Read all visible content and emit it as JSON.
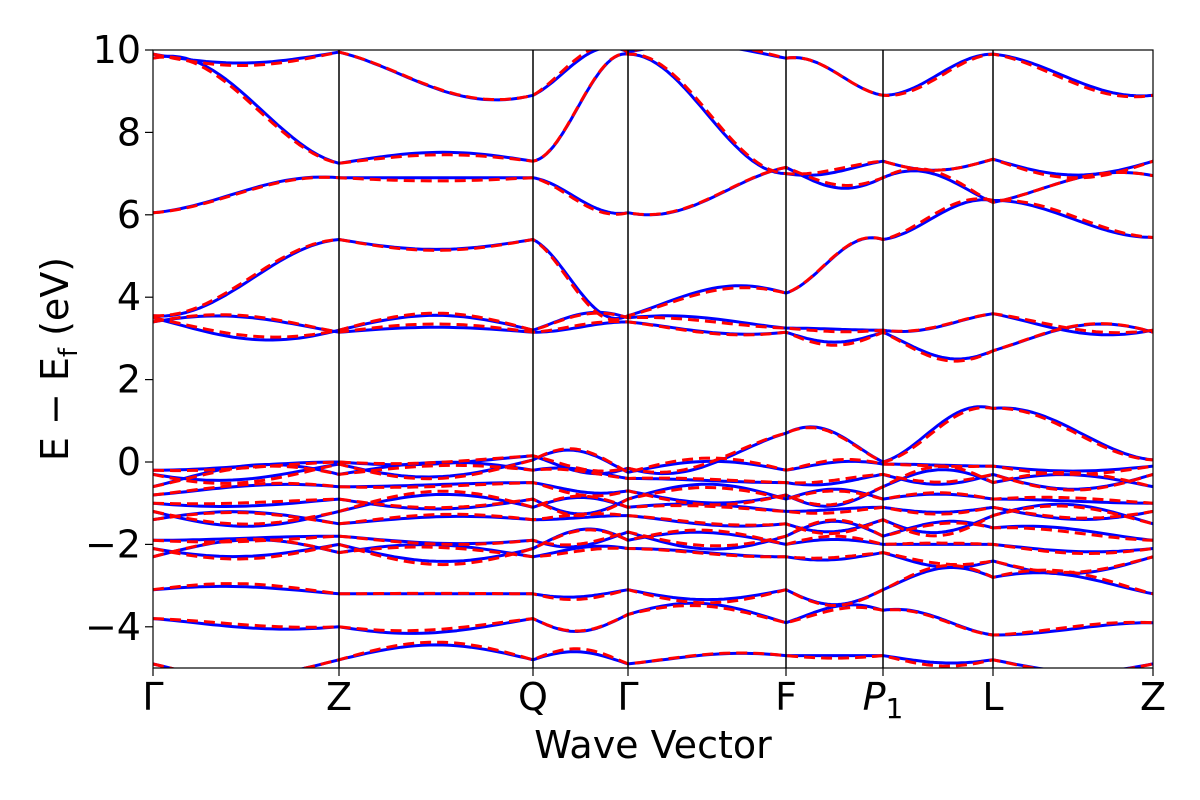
{
  "chart_data": {
    "type": "line",
    "title": "",
    "xlabel": "Wave Vector",
    "ylabel": {
      "main": "E − E",
      "sub": "f",
      "tail": " (eV)"
    },
    "ylim": [
      -5,
      10
    ],
    "yticks": [
      -4,
      -2,
      0,
      2,
      4,
      6,
      8,
      10
    ],
    "ytick_labels": [
      "−4",
      "−2",
      "0",
      "2",
      "4",
      "6",
      "8",
      "10"
    ],
    "xlim": [
      0,
      1
    ],
    "kpoints": [
      {
        "label": "Γ",
        "x": 0.0
      },
      {
        "label": "Z",
        "x": 0.186
      },
      {
        "label": "Q",
        "x": 0.38
      },
      {
        "label": "Γ",
        "x": 0.475
      },
      {
        "label": "F",
        "x": 0.633
      },
      {
        "label": "P",
        "sub": "1",
        "x": 0.73
      },
      {
        "label": "L",
        "x": 0.84
      },
      {
        "label": "Z",
        "x": 1.0
      }
    ],
    "grid": false,
    "legend": "none",
    "series": [
      {
        "style": "solid",
        "color": "#0000ff",
        "linewidth": 3
      },
      {
        "style": "dashed",
        "color": "#ff0000",
        "linewidth": 3
      }
    ],
    "bands_energy_at_kpoints": [
      [
        -4.9,
        -4.8,
        -4.8,
        -4.9,
        -4.7,
        -4.7,
        -4.8,
        -4.9
      ],
      [
        -3.8,
        -4.0,
        -3.8,
        -3.7,
        -3.9,
        -3.6,
        -4.2,
        -3.9
      ],
      [
        -3.1,
        -3.2,
        -3.2,
        -3.1,
        -3.1,
        -3.1,
        -2.8,
        -3.2
      ],
      [
        -2.3,
        -2.2,
        -2.3,
        -2.1,
        -2.3,
        -2.2,
        -2.4,
        -2.3
      ],
      [
        -2.1,
        -2.0,
        -2.1,
        -1.9,
        -2.0,
        -2.0,
        -2.0,
        -2.1
      ],
      [
        -1.9,
        -1.8,
        -1.9,
        -1.7,
        -1.8,
        -1.8,
        -1.6,
        -1.9
      ],
      [
        -1.4,
        -1.5,
        -1.4,
        -1.3,
        -1.5,
        -1.4,
        -1.3,
        -1.5
      ],
      [
        -1.2,
        -1.2,
        -1.1,
        -1.1,
        -1.2,
        -1.1,
        -1.1,
        -1.2
      ],
      [
        -1.0,
        -0.9,
        -0.9,
        -0.9,
        -0.9,
        -0.9,
        -0.9,
        -1.0
      ],
      [
        -0.8,
        -0.6,
        -0.5,
        -0.7,
        -0.8,
        -0.6,
        -0.5,
        -0.6
      ],
      [
        -0.6,
        -0.3,
        -0.2,
        -0.4,
        -0.5,
        -0.3,
        -0.3,
        -0.3
      ],
      [
        -0.3,
        -0.05,
        0.05,
        -0.25,
        -0.2,
        -0.05,
        -0.1,
        -0.1
      ],
      [
        -0.2,
        0.0,
        0.15,
        -0.15,
        0.7,
        0.0,
        1.3,
        0.05
      ],
      [
        3.4,
        3.15,
        3.15,
        3.4,
        3.15,
        3.15,
        2.7,
        3.15
      ],
      [
        3.5,
        3.2,
        3.2,
        3.5,
        3.25,
        3.2,
        3.6,
        3.2
      ],
      [
        3.55,
        5.4,
        5.4,
        3.55,
        4.1,
        5.4,
        6.35,
        5.45
      ],
      [
        6.05,
        6.9,
        6.9,
        6.05,
        7.15,
        6.9,
        6.3,
        6.95
      ],
      [
        9.8,
        7.25,
        7.3,
        9.9,
        7.0,
        7.3,
        7.35,
        7.3
      ],
      [
        9.9,
        9.95,
        8.9,
        9.95,
        9.8,
        8.9,
        9.9,
        8.9
      ]
    ]
  }
}
